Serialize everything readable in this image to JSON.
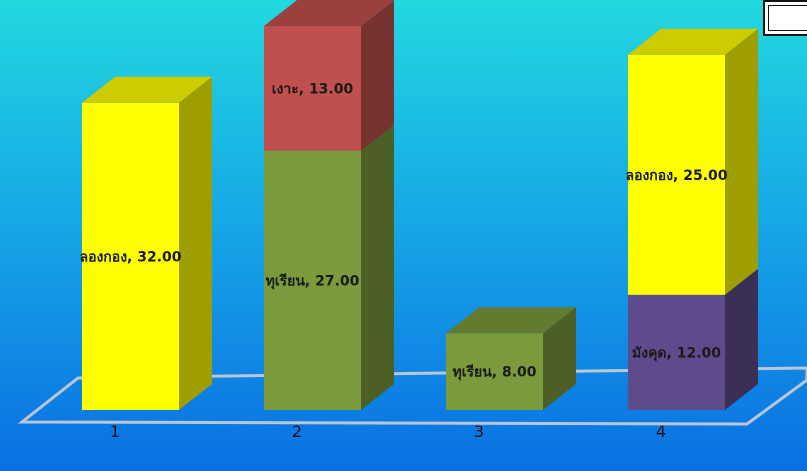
{
  "chart_data": {
    "type": "bar",
    "stacked": true,
    "three_d": true,
    "categories": [
      "1",
      "2",
      "3",
      "4"
    ],
    "ylim": [
      0,
      40
    ],
    "grid": false,
    "segments": [
      [
        {
          "name": "ลองกอง",
          "value": 32,
          "label": "ลองกอง, 32.00",
          "color": "#ffff00"
        }
      ],
      [
        {
          "name": "ทุเรียน",
          "value": 27,
          "label": "ทุเรียน, 27.00",
          "color": "#7a9a3c"
        },
        {
          "name": "เงาะ",
          "value": 13,
          "label": "เงาะ, 13.00",
          "color": "#c0504d"
        }
      ],
      [
        {
          "name": "ทุเรียน",
          "value": 8,
          "label": "ทุเรียน, 8.00",
          "color": "#7a9a3c"
        }
      ],
      [
        {
          "name": "มังคุด",
          "value": 12,
          "label": "มังคุด, 12.00",
          "color": "#5f4b8b"
        },
        {
          "name": "ลองกอง",
          "value": 25,
          "label": "ลองกอง, 25.00",
          "color": "#ffff00"
        }
      ]
    ]
  }
}
